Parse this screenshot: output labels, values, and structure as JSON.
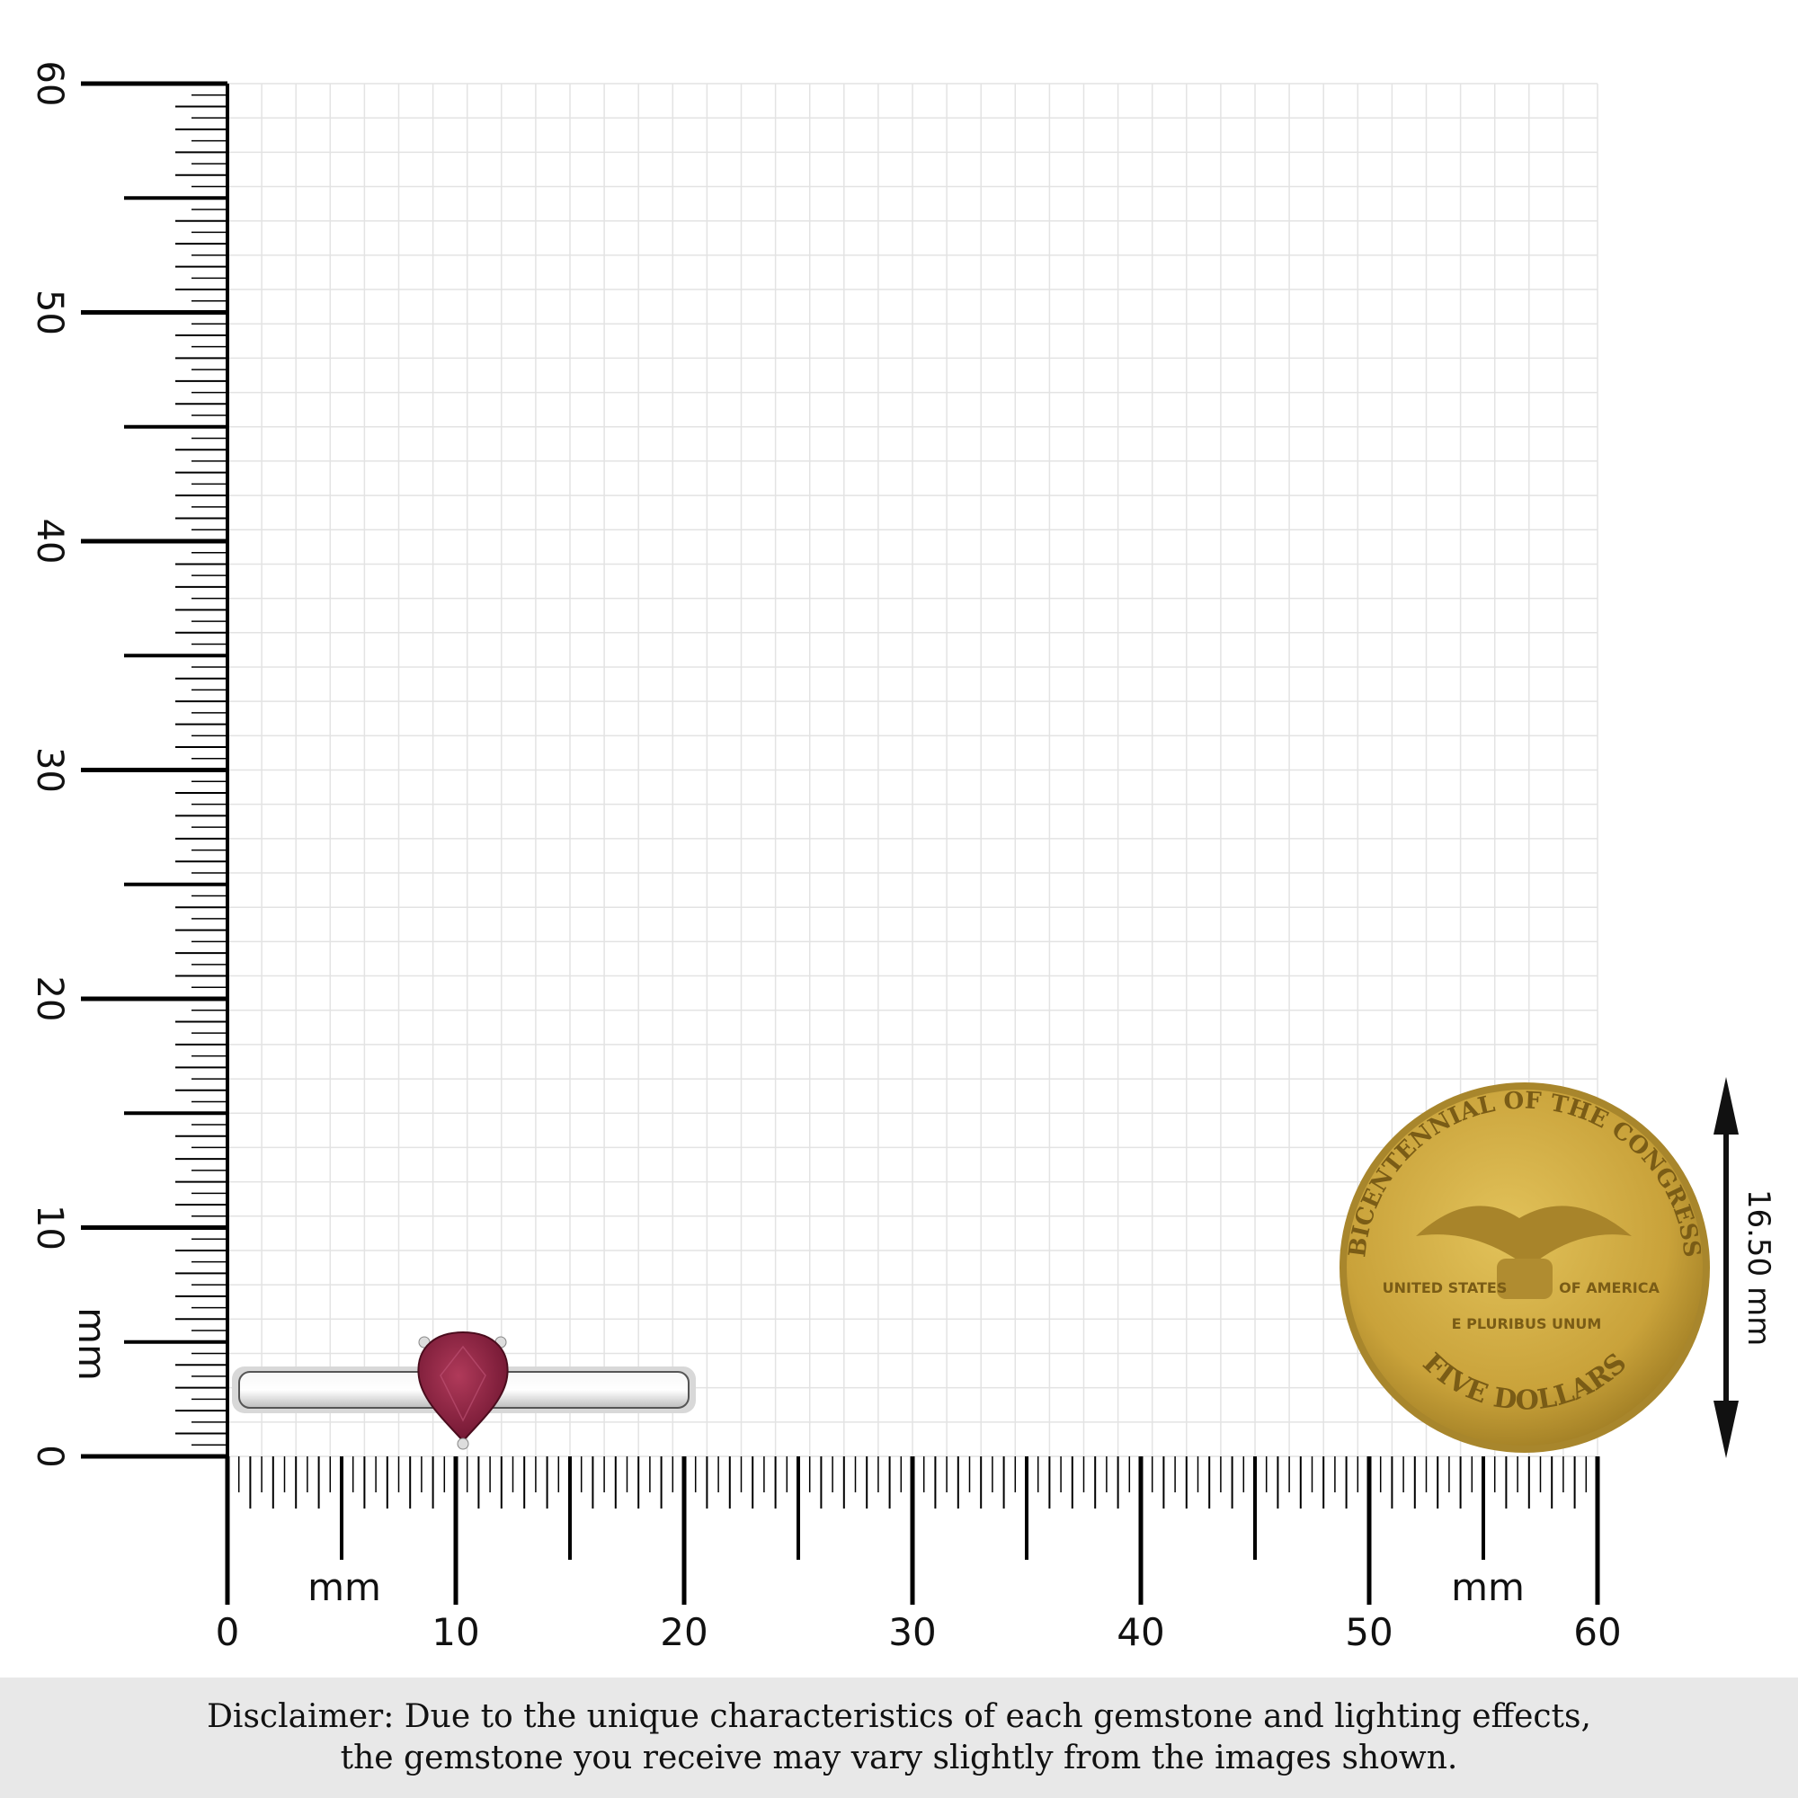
{
  "ruler": {
    "unit_label": "mm",
    "x_ticks": [
      "0",
      "10",
      "20",
      "30",
      "40",
      "50",
      "60"
    ],
    "y_ticks": [
      "0",
      "10",
      "20",
      "30",
      "40",
      "50",
      "60"
    ],
    "range_mm": [
      0,
      60
    ]
  },
  "item": {
    "name": "pear-cut ruby solitaire ring",
    "gem_color": "#8a1f3c",
    "metal_color": "#e6e6e6"
  },
  "coin": {
    "top_text": "BICENTENNIAL OF THE CONGRESS",
    "left_text": "UNITED STATES",
    "right_text": "OF AMERICA",
    "motto": "E PLURIBUS UNUM",
    "bottom_text": "FIVE DOLLARS",
    "color": "#c9a23a"
  },
  "measurement": {
    "label": "16.50 mm",
    "value_mm": 16.5
  },
  "disclaimer": {
    "line1": "Disclaimer: Due to the unique characteristics of each gemstone and lighting effects,",
    "line2": "the gemstone you receive may vary slightly from the images shown."
  }
}
